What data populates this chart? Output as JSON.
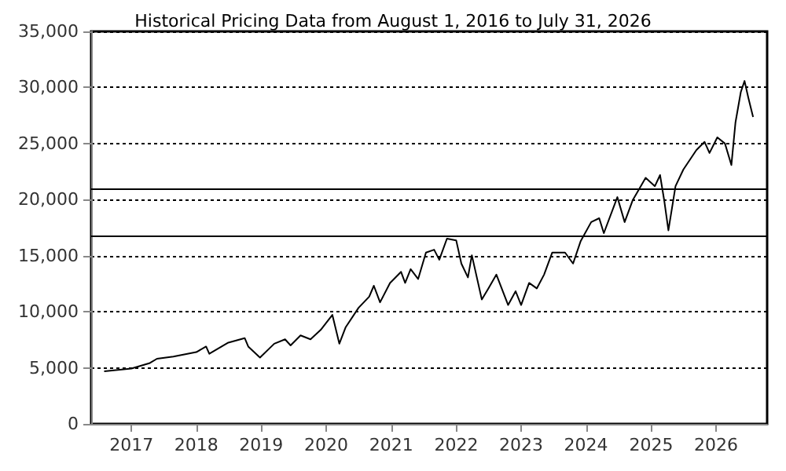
{
  "chart_data": {
    "type": "line",
    "title": "Historical Pricing Data from August 1, 2016 to July 31, 2026",
    "x": [
      "2016-08-01",
      "2017-01-01",
      "2017-04-15",
      "2017-05-25",
      "2017-08-25",
      "2018-01-01",
      "2018-02-25",
      "2018-03-15",
      "2018-06-30",
      "2018-09-30",
      "2018-10-20",
      "2018-12-25",
      "2019-03-15",
      "2019-05-15",
      "2019-06-15",
      "2019-08-10",
      "2019-10-05",
      "2019-12-01",
      "2020-02-05",
      "2020-03-15",
      "2020-04-20",
      "2020-07-01",
      "2020-08-30",
      "2020-09-25",
      "2020-10-30",
      "2020-12-25",
      "2021-02-25",
      "2021-03-20",
      "2021-04-20",
      "2021-06-01",
      "2021-07-15",
      "2021-08-30",
      "2021-09-28",
      "2021-11-10",
      "2022-01-01",
      "2022-01-30",
      "2022-03-08",
      "2022-03-30",
      "2022-05-25",
      "2022-07-01",
      "2022-08-15",
      "2022-10-20",
      "2022-12-01",
      "2023-01-01",
      "2023-02-15",
      "2023-03-30",
      "2023-05-10",
      "2023-06-25",
      "2023-09-05",
      "2023-10-20",
      "2023-12-01",
      "2024-01-30",
      "2024-03-15",
      "2024-04-10",
      "2024-06-25",
      "2024-08-05",
      "2024-09-20",
      "2024-12-01",
      "2025-01-22",
      "2025-02-20",
      "2025-03-15",
      "2025-04-08",
      "2025-05-18",
      "2025-07-01",
      "2025-09-12",
      "2025-10-28",
      "2025-11-25",
      "2026-01-08",
      "2026-02-20",
      "2026-03-28",
      "2026-04-20",
      "2026-05-20",
      "2026-06-10",
      "2026-07-01",
      "2026-07-28"
    ],
    "values": [
      4690,
      4930,
      5430,
      5810,
      6000,
      6400,
      6900,
      6250,
      7250,
      7650,
      6900,
      5920,
      7150,
      7540,
      7000,
      7890,
      7540,
      8380,
      9720,
      7150,
      8630,
      10350,
      11350,
      12320,
      10840,
      12570,
      13560,
      12570,
      13800,
      12920,
      15280,
      15530,
      14640,
      16520,
      16370,
      14300,
      13060,
      15040,
      11090,
      12080,
      13310,
      10600,
      11830,
      10600,
      12570,
      12080,
      13310,
      15280,
      15280,
      14300,
      16270,
      18000,
      18340,
      17010,
      20220,
      18000,
      19970,
      21940,
      21200,
      22190,
      19970,
      17260,
      21200,
      22680,
      24410,
      25150,
      24160,
      25550,
      25000,
      23080,
      26880,
      29590,
      30580,
      29100,
      27370
    ],
    "color": "#000000",
    "xlim": [
      "2016-05-20",
      "2026-10-15"
    ],
    "xticks": [
      {
        "value": "2017-01-01",
        "label": "2017"
      },
      {
        "value": "2018-01-01",
        "label": "2018"
      },
      {
        "value": "2019-01-01",
        "label": "2019"
      },
      {
        "value": "2020-01-01",
        "label": "2020"
      },
      {
        "value": "2021-01-01",
        "label": "2021"
      },
      {
        "value": "2022-01-01",
        "label": "2022"
      },
      {
        "value": "2023-01-01",
        "label": "2023"
      },
      {
        "value": "2024-01-01",
        "label": "2024"
      },
      {
        "value": "2025-01-01",
        "label": "2025"
      },
      {
        "value": "2026-01-01",
        "label": "2026"
      }
    ],
    "ylim": [
      0,
      35000
    ],
    "yticks": [
      0,
      {
        "value": 5000,
        "label": "5,000"
      },
      {
        "value": 10000,
        "label": "10,000"
      },
      {
        "value": 15000,
        "label": "15,000"
      },
      {
        "value": 20000,
        "label": "20,000"
      },
      {
        "value": 25000,
        "label": "25,000"
      },
      {
        "value": 30000,
        "label": "30,000"
      },
      {
        "value": 35000,
        "label": "35,000"
      }
    ],
    "ref_lines": [
      {
        "axis": "y",
        "value": 21000,
        "color": "#000000"
      },
      {
        "axis": "y",
        "value": 16800,
        "color": "#000000"
      }
    ],
    "grid": "y"
  }
}
